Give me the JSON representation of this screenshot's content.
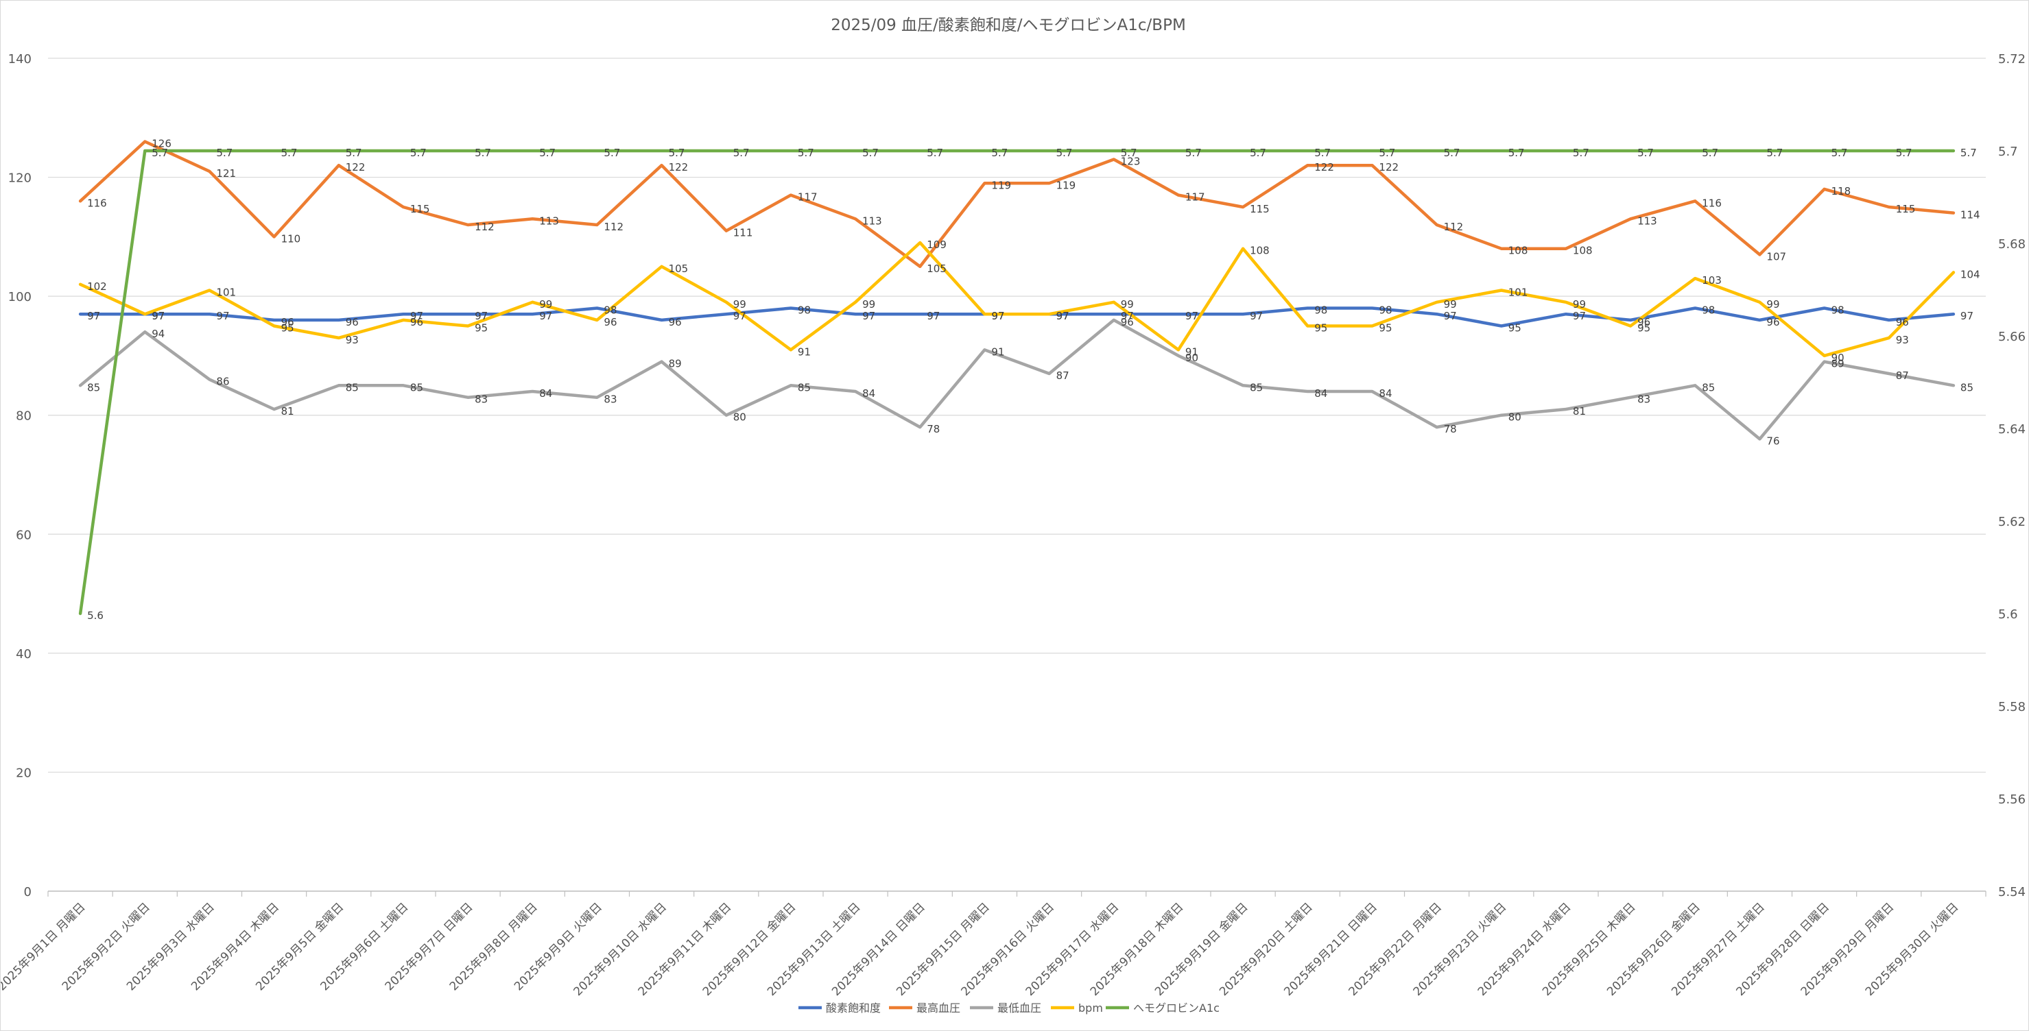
{
  "chart_data": {
    "type": "line",
    "title": "2025/09 血圧/酸素飽和度/ヘモグロビンA1c/BPM",
    "xlabel": "",
    "ylabel": "",
    "y2label": "",
    "ylim": [
      0,
      140
    ],
    "yticks": [
      0,
      20,
      40,
      60,
      80,
      100,
      120,
      140
    ],
    "y2lim": [
      5.54,
      5.72
    ],
    "y2ticks": [
      "5.54",
      "5.56",
      "5.58",
      "5.6",
      "5.62",
      "5.64",
      "5.66",
      "5.68",
      "5.7",
      "5.72"
    ],
    "grid": true,
    "legend_position": "bottom",
    "categories": [
      "2025年9月1日 月曜日",
      "2025年9月2日 火曜日",
      "2025年9月3日 水曜日",
      "2025年9月4日 木曜日",
      "2025年9月5日 金曜日",
      "2025年9月6日 土曜日",
      "2025年9月7日 日曜日",
      "2025年9月8日 月曜日",
      "2025年9月9日 火曜日",
      "2025年9月10日 水曜日",
      "2025年9月11日 木曜日",
      "2025年9月12日 金曜日",
      "2025年9月13日 土曜日",
      "2025年9月14日 日曜日",
      "2025年9月15日 月曜日",
      "2025年9月16日 火曜日",
      "2025年9月17日 水曜日",
      "2025年9月18日 木曜日",
      "2025年9月19日 金曜日",
      "2025年9月20日 土曜日",
      "2025年9月21日 日曜日",
      "2025年9月22日 月曜日",
      "2025年9月23日 火曜日",
      "2025年9月24日 水曜日",
      "2025年9月25日 木曜日",
      "2025年9月26日 金曜日",
      "2025年9月27日 土曜日",
      "2025年9月28日 日曜日",
      "2025年9月29日 月曜日",
      "2025年9月30日 火曜日"
    ],
    "series": [
      {
        "name": "酸素飽和度",
        "axis": "left",
        "color": "#4472c4",
        "values": [
          97,
          97,
          97,
          96,
          96,
          97,
          97,
          97,
          98,
          96,
          97,
          98,
          97,
          97,
          97,
          97,
          97,
          97,
          97,
          98,
          98,
          97,
          95,
          97,
          96,
          98,
          96,
          98,
          96,
          97
        ]
      },
      {
        "name": "最高血圧",
        "axis": "left",
        "color": "#ed7d31",
        "values": [
          116,
          126,
          121,
          110,
          122,
          115,
          112,
          113,
          112,
          122,
          111,
          117,
          113,
          105,
          119,
          119,
          123,
          117,
          115,
          122,
          122,
          112,
          108,
          108,
          113,
          116,
          107,
          118,
          115,
          114
        ]
      },
      {
        "name": "最低血圧",
        "axis": "left",
        "color": "#a5a5a5",
        "values": [
          85,
          94,
          86,
          81,
          85,
          85,
          83,
          84,
          83,
          89,
          80,
          85,
          84,
          78,
          91,
          87,
          96,
          90,
          85,
          84,
          84,
          78,
          80,
          81,
          83,
          85,
          76,
          89,
          87,
          85
        ]
      },
      {
        "name": "bpm",
        "axis": "left",
        "color": "#ffc000",
        "values": [
          102,
          97,
          101,
          95,
          93,
          96,
          95,
          99,
          96,
          105,
          99,
          91,
          99,
          109,
          97,
          97,
          99,
          91,
          108,
          95,
          95,
          99,
          101,
          99,
          95,
          103,
          99,
          90,
          93,
          104
        ]
      },
      {
        "name": "ヘモグロビンA1c",
        "axis": "right",
        "color": "#70ad47",
        "values": [
          5.6,
          5.7,
          5.7,
          5.7,
          5.7,
          5.7,
          5.7,
          5.7,
          5.7,
          5.7,
          5.7,
          5.7,
          5.7,
          5.7,
          5.7,
          5.7,
          5.7,
          5.7,
          5.7,
          5.7,
          5.7,
          5.7,
          5.7,
          5.7,
          5.7,
          5.7,
          5.7,
          5.7,
          5.7,
          5.7
        ]
      }
    ]
  }
}
